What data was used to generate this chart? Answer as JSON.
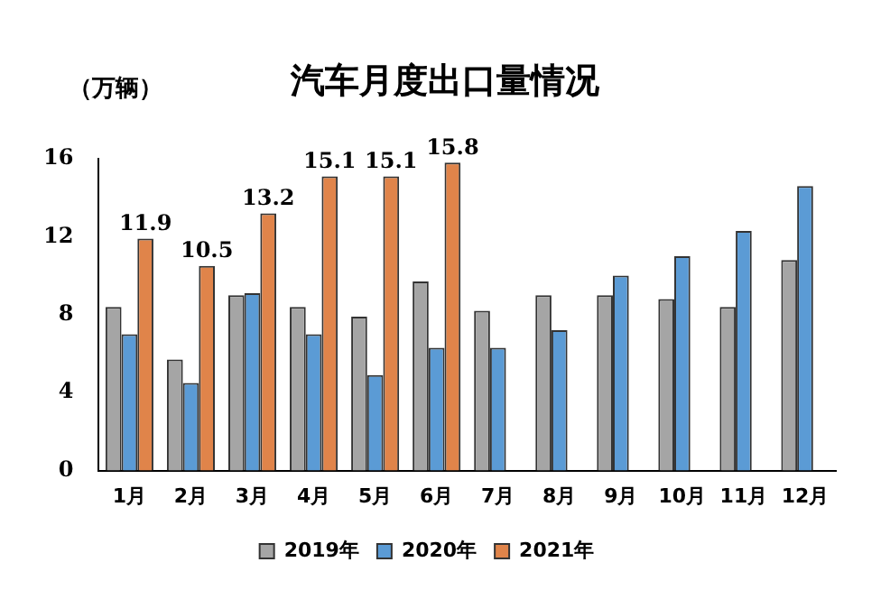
{
  "chart_data": {
    "type": "bar",
    "title": "汽车月度出口量情况",
    "ylabel": "（万辆）",
    "categories": [
      "1月",
      "2月",
      "3月",
      "4月",
      "5月",
      "6月",
      "7月",
      "8月",
      "9月",
      "10月",
      "11月",
      "12月"
    ],
    "series": [
      {
        "name": "2019年",
        "color": "#a5a5a5",
        "values": [
          8.4,
          5.7,
          9.0,
          8.4,
          7.9,
          9.7,
          8.2,
          9.0,
          9.0,
          8.8,
          8.4,
          10.8
        ]
      },
      {
        "name": "2020年",
        "color": "#5b9bd5",
        "values": [
          7.0,
          4.5,
          9.1,
          7.0,
          4.9,
          6.3,
          6.3,
          7.2,
          10.0,
          11.0,
          12.3,
          14.6
        ]
      },
      {
        "name": "2021年",
        "color": "#e0844a",
        "values": [
          11.9,
          10.5,
          13.2,
          15.1,
          15.1,
          15.8,
          null,
          null,
          null,
          null,
          null,
          null
        ],
        "value_labels": [
          "11.9",
          "10.5",
          "13.2",
          "15.1",
          "15.1",
          "15.8",
          null,
          null,
          null,
          null,
          null,
          null
        ]
      }
    ],
    "ylim": [
      0,
      16
    ],
    "yticks": [
      0,
      4,
      8,
      12,
      16
    ],
    "grid": false,
    "legend": "bottom"
  }
}
